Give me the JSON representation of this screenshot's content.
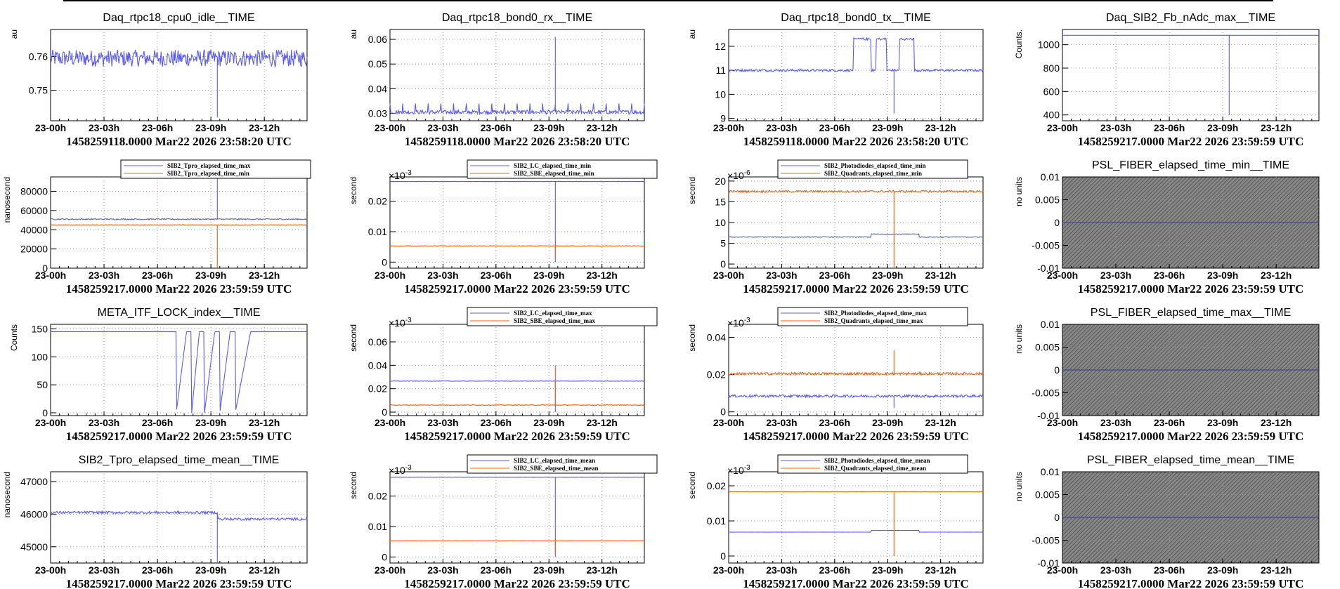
{
  "colors": {
    "blue": "#5a5af2",
    "orange": "#f06010",
    "grid": "#aaaaaa",
    "hatch_bg": "#777777"
  },
  "chart_data": [
    {
      "type": "line",
      "title": "Daq_rtpc18_cpu0_idle__TIME",
      "ylabel": "au",
      "yticks": [
        "0.75",
        "0.76"
      ],
      "ylim": [
        0.741,
        0.768
      ],
      "xticks": [
        "23-00h",
        "23-03h",
        "23-06h",
        "23-09h",
        "23-12h"
      ],
      "footer": "1458259118.0000 Mar22 2026 23:58:20 UTC",
      "series": [
        {
          "color": "#5a5af2",
          "base": 0.7595,
          "noise": 0.0025,
          "events": [
            {
              "at": 0.65,
              "val": 0.742
            }
          ]
        }
      ]
    },
    {
      "type": "line",
      "title": "Daq_rtpc18_bond0_rx__TIME",
      "ylabel": "au",
      "yticks": [
        "0.03",
        "0.04",
        "0.05",
        "0.06"
      ],
      "ylim": [
        0.027,
        0.064
      ],
      "xticks": [
        "23-00h",
        "23-03h",
        "23-06h",
        "23-09h",
        "23-12h"
      ],
      "footer": "1458259118.0000 Mar22 2026 23:58:20 UTC",
      "series": [
        {
          "color": "#5a5af2",
          "base": 0.0305,
          "noise": 0.0008,
          "spikes": 0.034,
          "events": [
            {
              "at": 0.65,
              "val": 0.061
            }
          ]
        }
      ]
    },
    {
      "type": "line",
      "title": "Daq_rtpc18_bond0_tx__TIME",
      "ylabel": "au",
      "yticks": [
        "9",
        "10",
        "11",
        "12"
      ],
      "ylim": [
        8.9,
        12.7
      ],
      "xticks": [
        "23-00h",
        "23-03h",
        "23-06h",
        "23-09h",
        "23-12h"
      ],
      "footer": "1458259118.0000 Mar22 2026 23:58:20 UTC",
      "series": [
        {
          "color": "#5a5af2",
          "base": 11.0,
          "noise": 0.05,
          "bursts": 12.3,
          "events": [
            {
              "at": 0.65,
              "val": 9.2
            }
          ]
        }
      ]
    },
    {
      "type": "line",
      "title": "Daq_SIB2_Fb_nAdc_max__TIME",
      "ylabel": "Counts.",
      "yticks": [
        "400",
        "600",
        "800",
        "1000"
      ],
      "ylim": [
        350,
        1130
      ],
      "xticks": [
        "23-00h",
        "23-03h",
        "23-06h",
        "23-09h",
        "23-12h"
      ],
      "footer": "1458259217.0000 Mar22 2026 23:59:59 UTC",
      "series": [
        {
          "color": "#5a5af2",
          "base": 1080,
          "noise": 0,
          "events": [
            {
              "at": 0.65,
              "val": 400
            }
          ]
        }
      ]
    },
    {
      "type": "line",
      "title": "",
      "ylabel": "nanosecond",
      "yticks": [
        "0",
        "20000",
        "40000",
        "60000",
        "80000"
      ],
      "ylim": [
        0,
        95000
      ],
      "xticks": [
        "23-00h",
        "23-03h",
        "23-06h",
        "23-09h",
        "23-12h"
      ],
      "footer": "1458259217.0000 Mar22 2026 23:59:59 UTC",
      "legend": [
        "SIB2_Tpro_elapsed_time_max",
        "SIB2_Tpro_elapsed_time_min"
      ],
      "series": [
        {
          "color": "#5a5af2",
          "base": 51000,
          "noise": 600,
          "events": [
            {
              "at": 0.65,
              "val": 95000
            }
          ]
        },
        {
          "color": "#f06010",
          "base": 45000,
          "noise": 300,
          "events": [
            {
              "at": 0.65,
              "val": 0
            }
          ]
        }
      ]
    },
    {
      "type": "line",
      "title": "",
      "ylabel": "second",
      "exponent": "-3",
      "yticks": [
        "0",
        "0.01",
        "0.02"
      ],
      "ylim": [
        -0.002,
        0.028
      ],
      "xticks": [
        "23-00h",
        "23-03h",
        "23-06h",
        "23-09h",
        "23-12h"
      ],
      "footer": "1458259217.0000 Mar22 2026 23:59:59 UTC",
      "legend": [
        "SIB2_LC_elapsed_time_min",
        "SIB2_SBE_elapsed_time_min"
      ],
      "series": [
        {
          "color": "#5a5af2",
          "base": 0.0265,
          "noise": 5e-05,
          "events": [
            {
              "at": 0.65,
              "val": 0.0
            }
          ]
        },
        {
          "color": "#f06010",
          "base": 0.0053,
          "noise": 0.0001,
          "events": [
            {
              "at": 0.65,
              "val": 0.001
            }
          ]
        }
      ]
    },
    {
      "type": "line",
      "title": "",
      "ylabel": "second",
      "exponent": "-6",
      "yticks": [
        "0",
        "5",
        "10",
        "15",
        "20"
      ],
      "ylim": [
        -1,
        21
      ],
      "xticks": [
        "23-00h",
        "23-03h",
        "23-06h",
        "23-09h",
        "23-12h"
      ],
      "footer": "1458259217.0000 Mar22 2026 23:59:59 UTC",
      "legend": [
        "SIB2_Photodiodes_elapsed_time_min",
        "SIB2_Quadrants_elapsed_time_min"
      ],
      "series": [
        {
          "color": "#5a5af2",
          "base": 6.5,
          "noise": 0.1,
          "bump": 7.2
        },
        {
          "color": "#f06010",
          "base": 17.5,
          "noise": 0.25,
          "events": [
            {
              "at": 0.65,
              "val": -1
            }
          ]
        }
      ]
    },
    {
      "type": "hatched",
      "title": "PSL_FIBER_elapsed_time_min__TIME",
      "ylabel": "no units",
      "yticks": [
        "-0.01",
        "-0.005",
        "0",
        "0.005",
        "0.01"
      ],
      "ylim": [
        -0.01,
        0.01
      ],
      "xticks": [
        "23-00h",
        "23-03h",
        "23-06h",
        "23-09h",
        "23-12h"
      ],
      "footer": "1458259217.0000 Mar22 2026 23:59:59 UTC",
      "series": [
        {
          "color": "#3333aa",
          "base": 0,
          "noise": 0
        }
      ]
    },
    {
      "type": "line",
      "title": "META_ITF_LOCK_index__TIME",
      "ylabel": "Counts",
      "yticks": [
        "0",
        "50",
        "100",
        "150"
      ],
      "ylim": [
        -5,
        158
      ],
      "xticks": [
        "23-00h",
        "23-03h",
        "23-06h",
        "23-09h",
        "23-12h"
      ],
      "footer": "1458259217.0000 Mar22 2026 23:59:59 UTC",
      "series": [
        {
          "color": "#5a5af2",
          "base": 145,
          "noise": 0,
          "lockloss": true
        }
      ]
    },
    {
      "type": "line",
      "title": "",
      "ylabel": "second",
      "exponent": "-3",
      "yticks": [
        "0",
        "0.02",
        "0.04",
        "0.06"
      ],
      "ylim": [
        -0.003,
        0.075
      ],
      "xticks": [
        "23-00h",
        "23-03h",
        "23-06h",
        "23-09h",
        "23-12h"
      ],
      "footer": "1458259217.0000 Mar22 2026 23:59:59 UTC",
      "legend": [
        "SIB2_LC_elapsed_time_max",
        "SIB2_SBE_elapsed_time_max"
      ],
      "series": [
        {
          "color": "#5a5af2",
          "base": 0.0265,
          "noise": 0.0002,
          "events": [
            {
              "at": 0.65,
              "val": 0.0
            }
          ]
        },
        {
          "color": "#f06010",
          "base": 0.006,
          "noise": 0.0003,
          "events": [
            {
              "at": 0.65,
              "val": 0.04
            }
          ]
        }
      ]
    },
    {
      "type": "line",
      "title": "",
      "ylabel": "second",
      "exponent": "-3",
      "yticks": [
        "0",
        "0.02",
        "0.04"
      ],
      "ylim": [
        -0.002,
        0.047
      ],
      "xticks": [
        "23-00h",
        "23-03h",
        "23-06h",
        "23-09h",
        "23-12h"
      ],
      "footer": "1458259217.0000 Mar22 2026 23:59:59 UTC",
      "legend": [
        "SIB2_Photodiodes_elapsed_time_max",
        "SIB2_Quadrants_elapsed_time_max"
      ],
      "series": [
        {
          "color": "#5a5af2",
          "base": 0.0085,
          "noise": 0.0007,
          "events": [
            {
              "at": 0.65,
              "val": 0.002
            }
          ]
        },
        {
          "color": "#f06010",
          "base": 0.0205,
          "noise": 0.0007,
          "events": [
            {
              "at": 0.65,
              "val": 0.033
            }
          ]
        }
      ]
    },
    {
      "type": "hatched",
      "title": "PSL_FIBER_elapsed_time_max__TIME",
      "ylabel": "no units",
      "yticks": [
        "-0.01",
        "-0.005",
        "0",
        "0.005",
        "0.01"
      ],
      "ylim": [
        -0.01,
        0.01
      ],
      "xticks": [
        "23-00h",
        "23-03h",
        "23-06h",
        "23-09h",
        "23-12h"
      ],
      "footer": "1458259217.0000 Mar22 2026 23:59:59 UTC",
      "series": [
        {
          "color": "#3333aa",
          "base": 0,
          "noise": 0
        }
      ]
    },
    {
      "type": "line",
      "title": "SIB2_Tpro_elapsed_time_mean__TIME",
      "ylabel": "nanosecond",
      "yticks": [
        "45000",
        "46000",
        "47000"
      ],
      "ylim": [
        44500,
        47300
      ],
      "xticks": [
        "23-00h",
        "23-03h",
        "23-06h",
        "23-09h",
        "23-12h"
      ],
      "footer": "1458259217.0000 Mar22 2026 23:59:59 UTC",
      "series": [
        {
          "color": "#5a5af2",
          "base": 46050,
          "noise": 40,
          "stepdown": 45850,
          "events": [
            {
              "at": 0.65,
              "val": 44500
            }
          ]
        }
      ]
    },
    {
      "type": "line",
      "title": "",
      "ylabel": "second",
      "exponent": "-3",
      "yticks": [
        "0",
        "0.01",
        "0.02"
      ],
      "ylim": [
        -0.002,
        0.028
      ],
      "xticks": [
        "23-00h",
        "23-03h",
        "23-06h",
        "23-09h",
        "23-12h"
      ],
      "footer": "1458259217.0000 Mar22 2026 23:59:59 UTC",
      "legend": [
        "SIB2_LC_elapsed_time_mean",
        "SIB2_SBE_elapsed_time_mean"
      ],
      "series": [
        {
          "color": "#5a5af2",
          "base": 0.0262,
          "noise": 4e-05,
          "events": [
            {
              "at": 0.65,
              "val": 0.0
            }
          ]
        },
        {
          "color": "#f06010",
          "base": 0.0053,
          "noise": 5e-05,
          "events": [
            {
              "at": 0.65,
              "val": 0.001
            }
          ]
        }
      ]
    },
    {
      "type": "line",
      "title": "",
      "ylabel": "second",
      "exponent": "-3",
      "yticks": [
        "0",
        "0.01",
        "0.02"
      ],
      "ylim": [
        -0.002,
        0.024
      ],
      "xticks": [
        "23-00h",
        "23-03h",
        "23-06h",
        "23-09h",
        "23-12h"
      ],
      "footer": "1458259217.0000 Mar22 2026 23:59:59 UTC",
      "legend": [
        "SIB2_Photodiodes_elapsed_time_mean",
        "SIB2_Quadrants_elapsed_time_mean"
      ],
      "series": [
        {
          "color": "#5a5af2",
          "base": 0.0068,
          "noise": 3e-05,
          "bump": 0.0073
        },
        {
          "color": "#f06010",
          "base": 0.0183,
          "noise": 4e-05,
          "events": [
            {
              "at": 0.65,
              "val": 0.0
            }
          ]
        }
      ]
    },
    {
      "type": "hatched",
      "title": "PSL_FIBER_elapsed_time_mean__TIME",
      "ylabel": "no units",
      "yticks": [
        "-0.01",
        "-0.005",
        "0",
        "0.005",
        "0.01"
      ],
      "ylim": [
        -0.01,
        0.01
      ],
      "xticks": [
        "23-00h",
        "23-03h",
        "23-06h",
        "23-09h",
        "23-12h"
      ],
      "footer": "1458259217.0000 Mar22 2026 23:59:59 UTC",
      "series": [
        {
          "color": "#3333aa",
          "base": 0,
          "noise": 0
        }
      ]
    }
  ]
}
